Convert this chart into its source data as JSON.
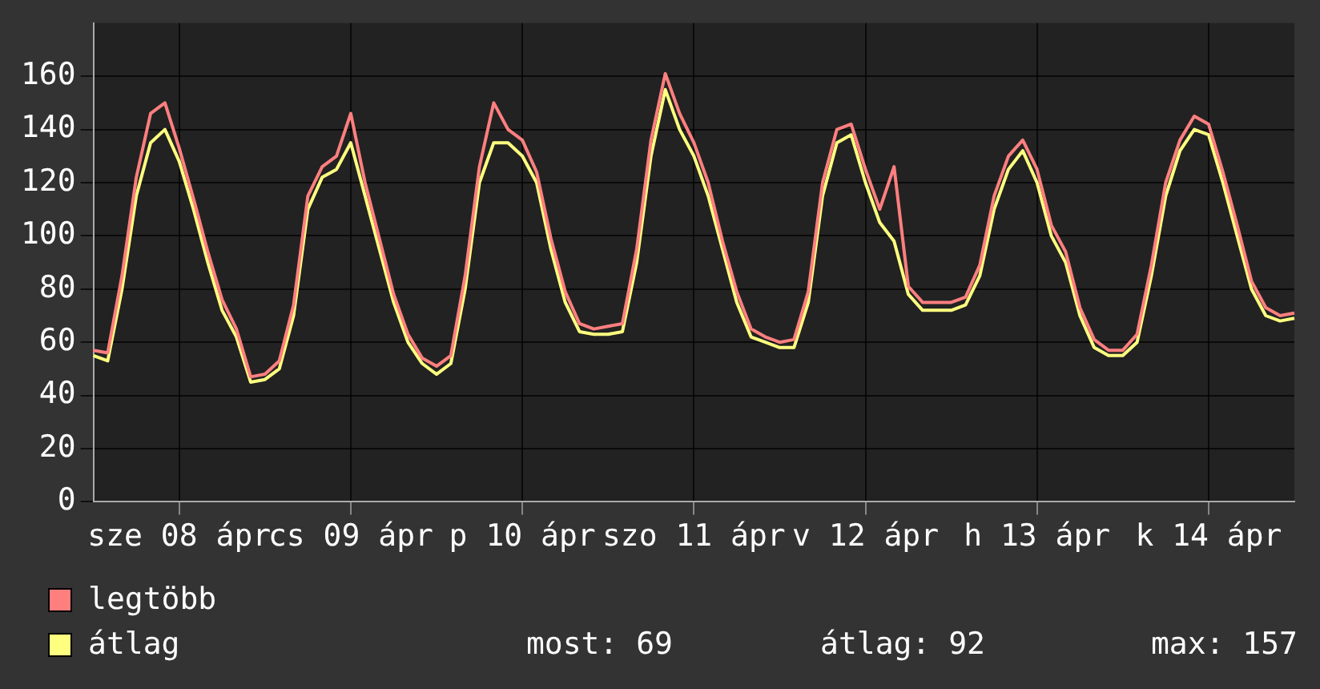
{
  "chart_data": {
    "type": "line",
    "categories": [
      null,
      null,
      null,
      null,
      null,
      null,
      "sze 08 ápr",
      null,
      null,
      null,
      null,
      null,
      null,
      null,
      null,
      null,
      null,
      null,
      "cs 09 ápr",
      null,
      null,
      null,
      null,
      null,
      null,
      null,
      null,
      null,
      null,
      null,
      "p 10 ápr",
      null,
      null,
      null,
      null,
      null,
      null,
      null,
      null,
      null,
      null,
      null,
      "szo 11 ápr",
      null,
      null,
      null,
      null,
      null,
      null,
      null,
      null,
      null,
      null,
      null,
      "v 12 ápr",
      null,
      null,
      null,
      null,
      null,
      null,
      null,
      null,
      null,
      null,
      null,
      "h 13 ápr",
      null,
      null,
      null,
      null,
      null,
      null,
      null,
      null,
      null,
      null,
      null,
      "k 14 ápr",
      null,
      null,
      null,
      null,
      null,
      null
    ],
    "series": [
      {
        "name": "legtöbb",
        "color": "#ff7f7f",
        "values": [
          57,
          56,
          85,
          122,
          146,
          150,
          133,
          114,
          94,
          76,
          65,
          47,
          48,
          53,
          74,
          115,
          126,
          130,
          146,
          120,
          99,
          78,
          63,
          54,
          51,
          55,
          85,
          126,
          150,
          140,
          136,
          124,
          99,
          79,
          67,
          65,
          66,
          67,
          95,
          136,
          161,
          146,
          135,
          120,
          98,
          79,
          65,
          62,
          60,
          61,
          79,
          120,
          140,
          142,
          125,
          110,
          126,
          81,
          75,
          75,
          75,
          77,
          89,
          115,
          130,
          136,
          125,
          104,
          94,
          73,
          61,
          57,
          57,
          63,
          89,
          120,
          136,
          145,
          142,
          124,
          104,
          83,
          73,
          70,
          71
        ]
      },
      {
        "name": "átlag",
        "color": "#ffff7f",
        "values": [
          55,
          53,
          80,
          115,
          135,
          140,
          128,
          110,
          90,
          72,
          62,
          45,
          46,
          50,
          70,
          110,
          122,
          125,
          135,
          115,
          95,
          75,
          60,
          52,
          48,
          52,
          80,
          120,
          135,
          135,
          130,
          120,
          95,
          75,
          64,
          63,
          63,
          64,
          90,
          130,
          155,
          140,
          130,
          115,
          95,
          75,
          62,
          60,
          58,
          58,
          75,
          115,
          135,
          138,
          120,
          105,
          98,
          78,
          72,
          72,
          72,
          74,
          85,
          110,
          125,
          132,
          120,
          100,
          90,
          70,
          58,
          55,
          55,
          60,
          85,
          115,
          132,
          140,
          138,
          120,
          100,
          80,
          70,
          68,
          69
        ]
      }
    ],
    "ylim": [
      0,
      180
    ],
    "yticks": [
      0,
      20,
      40,
      60,
      80,
      100,
      120,
      140,
      160
    ],
    "grid": true,
    "legend": "bottom left",
    "marker": "none",
    "line_style": "solid",
    "annotations": [
      "most: 69",
      "átlag: 92",
      "max: 157"
    ]
  }
}
